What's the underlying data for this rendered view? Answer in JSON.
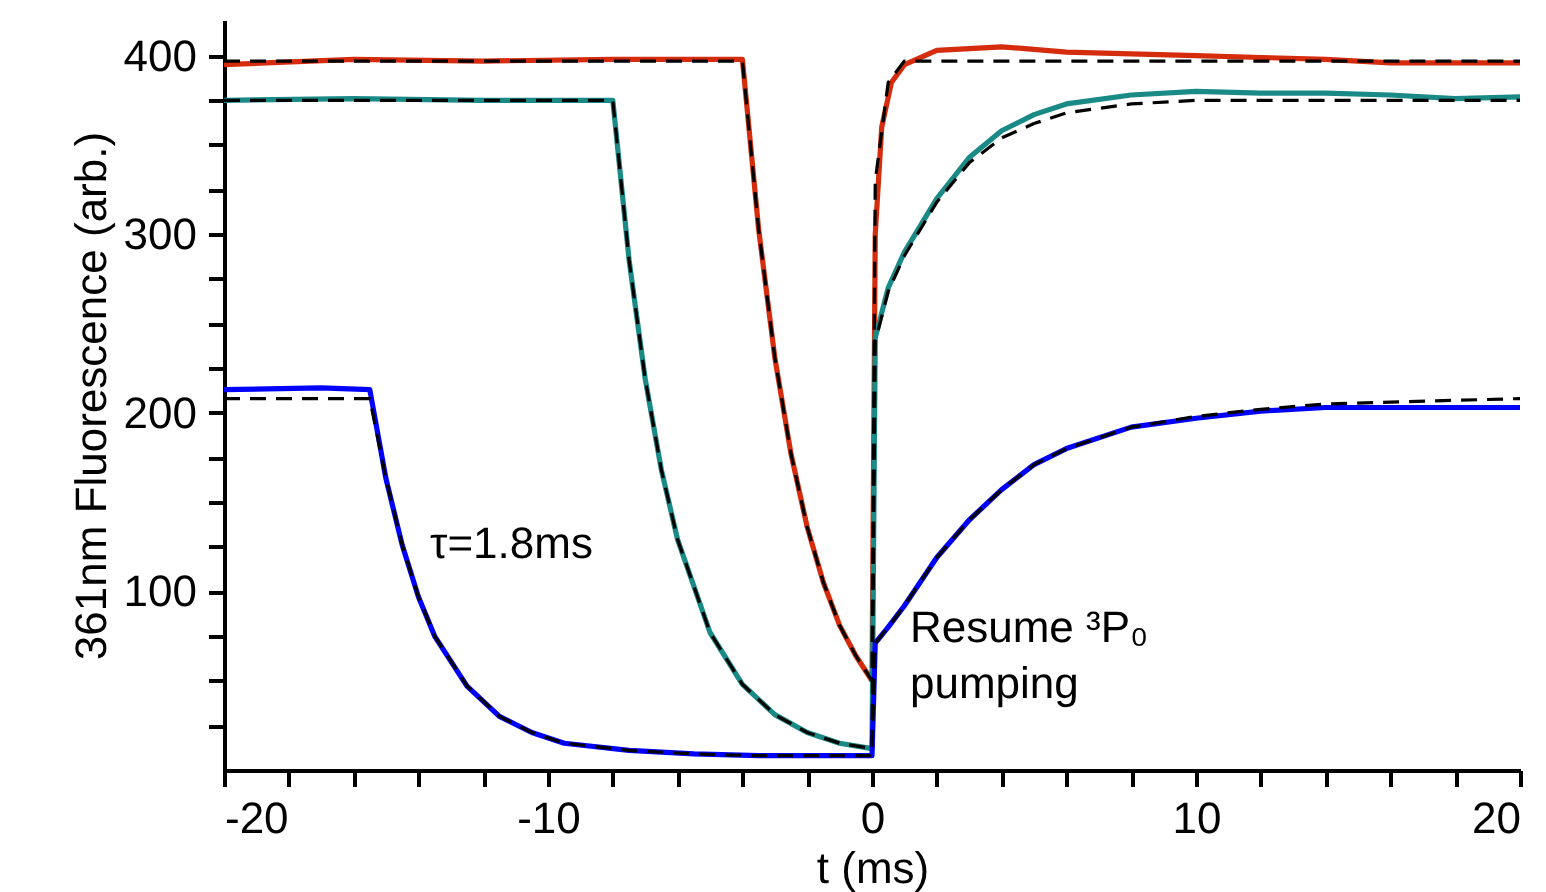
{
  "chart_data": {
    "type": "line",
    "xlabel": "t (ms)",
    "ylabel": "361nm Fluorescence (arb.)",
    "xlim": [
      -20,
      20
    ],
    "ylim": [
      0,
      420
    ],
    "xticks": [
      -20,
      {
        "value": -18,
        "label": null
      },
      {
        "value": -16,
        "label": null
      },
      {
        "value": -14,
        "label": null
      },
      {
        "value": -12,
        "label": null
      },
      -10,
      {
        "value": -8,
        "label": null
      },
      {
        "value": -6,
        "label": null
      },
      {
        "value": -4,
        "label": null
      },
      {
        "value": -2,
        "label": null
      },
      0,
      {
        "value": 2,
        "label": null
      },
      {
        "value": 4,
        "label": null
      },
      {
        "value": 6,
        "label": null
      },
      {
        "value": 8,
        "label": null
      },
      10,
      {
        "value": 12,
        "label": null
      },
      {
        "value": 14,
        "label": null
      },
      {
        "value": 16,
        "label": null
      },
      {
        "value": 18,
        "label": null
      },
      20
    ],
    "yticks": [
      {
        "value": 25,
        "label": null
      },
      {
        "value": 50,
        "label": null
      },
      {
        "value": 75,
        "label": null
      },
      100,
      {
        "value": 125,
        "label": null
      },
      {
        "value": 150,
        "label": null
      },
      {
        "value": 175,
        "label": null
      },
      200,
      {
        "value": 225,
        "label": null
      },
      {
        "value": 250,
        "label": null
      },
      {
        "value": 275,
        "label": null
      },
      300,
      {
        "value": 325,
        "label": null
      },
      {
        "value": 350,
        "label": null
      },
      {
        "value": 375,
        "label": null
      },
      400
    ],
    "series": [
      {
        "color": "#d42c0c",
        "line_style": "solid",
        "x": [
          -20,
          -16,
          -12,
          -8,
          -4,
          -3.5,
          -3,
          -2.5,
          -2,
          -1.5,
          -1,
          -0.5,
          0,
          0.1,
          0.3,
          0.6,
          1,
          2,
          4,
          6,
          8,
          10,
          12,
          14,
          16,
          18,
          20
        ],
        "values": [
          395,
          398,
          397,
          398,
          398,
          303,
          231,
          177,
          136,
          105,
          81,
          64,
          50,
          300,
          360,
          385,
          395,
          403,
          405,
          402,
          401,
          400,
          399,
          398,
          396,
          396,
          396
        ]
      },
      {
        "color": "#1a8a87",
        "line_style": "solid",
        "x": [
          -20,
          -16,
          -12,
          -8,
          -7.5,
          -7,
          -6.5,
          -6,
          -5,
          -4,
          -3,
          -2,
          -1,
          0,
          0.1,
          0.5,
          1,
          2,
          3,
          4,
          5,
          6,
          8,
          10,
          12,
          14,
          16,
          18,
          20
        ],
        "values": [
          375,
          376,
          375,
          375,
          286,
          219,
          168,
          129,
          77,
          48,
          31,
          21,
          15,
          12,
          242,
          270,
          290,
          320,
          343,
          358,
          367,
          373,
          378,
          380,
          379,
          379,
          378,
          376,
          377
        ]
      },
      {
        "color": "#0000ff",
        "line_style": "solid",
        "x": [
          -20,
          -17,
          -15.5,
          -15,
          -14.5,
          -14,
          -13.5,
          -12.5,
          -11.5,
          -10.5,
          -9.5,
          -7.5,
          -5.5,
          -3.5,
          0,
          0.1,
          0.5,
          1,
          2,
          3,
          4,
          5,
          6,
          8,
          10,
          12,
          14,
          16,
          18,
          20
        ],
        "values": [
          213,
          214,
          213,
          163,
          126,
          97,
          75,
          47,
          30,
          21,
          15,
          11,
          9,
          8,
          8,
          71,
          80,
          92,
          119,
          140,
          157,
          171,
          180,
          192,
          197,
          201,
          203,
          203,
          203,
          203
        ]
      },
      {
        "color": "#000000",
        "line_style": "dashed",
        "x": [
          -20,
          -4,
          -3.5,
          -3,
          -2.5,
          -2,
          -1.5,
          -1,
          -0.5,
          0,
          0.1,
          0.5,
          1,
          20
        ],
        "values": [
          397,
          397,
          303,
          231,
          177,
          136,
          105,
          81,
          64,
          50,
          330,
          385,
          397,
          397
        ]
      },
      {
        "color": "#000000",
        "line_style": "dashed",
        "x": [
          -20,
          -8,
          -7.5,
          -7,
          -6.5,
          -6,
          -5,
          -4,
          -3,
          -2,
          -1,
          0,
          0.1,
          0.5,
          1,
          2,
          3,
          4,
          5,
          6,
          8,
          10,
          20
        ],
        "values": [
          375,
          375,
          286,
          219,
          168,
          129,
          77,
          48,
          31,
          21,
          15,
          12,
          240,
          268,
          288,
          318,
          340,
          354,
          362,
          368,
          373,
          375,
          375
        ]
      },
      {
        "color": "#000000",
        "line_style": "dashed",
        "x": [
          -20,
          -15.5,
          -15,
          -14.5,
          -14,
          -13.5,
          -12.5,
          -11.5,
          -10.5,
          -9.5,
          -7.5,
          -5.5,
          -3.5,
          0,
          0.1,
          0.5,
          1,
          2,
          3,
          4,
          5,
          6,
          8,
          10,
          12,
          14,
          20
        ],
        "values": [
          208,
          208,
          163,
          126,
          97,
          75,
          47,
          30,
          21,
          15,
          11,
          9,
          8,
          8,
          71,
          80,
          92,
          119,
          140,
          157,
          171,
          180,
          192,
          198,
          202,
          205,
          208
        ]
      }
    ],
    "annotations": [
      "τ=1.8ms",
      "Resume ³P₀ pumping"
    ]
  }
}
